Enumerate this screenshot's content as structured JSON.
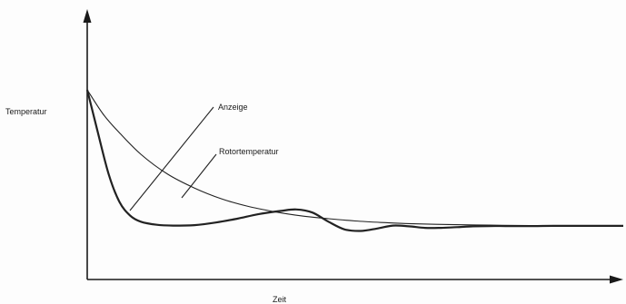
{
  "chart_data": {
    "type": "line",
    "title": "",
    "ylabel": "Temperatur",
    "xlabel": "Zeit",
    "xlim": [
      0,
      100
    ],
    "ylim": [
      0,
      100
    ],
    "grid": false,
    "series": [
      {
        "name": "Rotortemperatur",
        "x": [
          0,
          3,
          6,
          10,
          15,
          20,
          25,
          30,
          35,
          40,
          45,
          50,
          55,
          60,
          65,
          70,
          75,
          80,
          85,
          90,
          95,
          100
        ],
        "y": [
          100,
          84,
          72,
          58,
          45,
          36,
          29,
          24,
          20.5,
          17.8,
          16,
          14.5,
          13.5,
          12.8,
          12.3,
          12,
          11.8,
          11.6,
          11.5,
          11.4,
          11.3,
          11.3
        ]
      },
      {
        "name": "Anzeige",
        "x": [
          0,
          2,
          4,
          6,
          8,
          10,
          13,
          16,
          20,
          24,
          28,
          32,
          36,
          39,
          42,
          45,
          48,
          51,
          54,
          57,
          60,
          63,
          66,
          69,
          72,
          75,
          78,
          81,
          84,
          87,
          90,
          95,
          100
        ],
        "y": [
          100,
          72,
          45,
          27,
          18,
          14,
          12,
          11.5,
          11.8,
          13.5,
          16,
          19,
          21,
          22,
          20,
          14,
          9,
          8,
          9.5,
          11.5,
          11,
          10,
          10,
          10.5,
          11,
          11.2,
          11.2,
          11.2,
          11.2,
          11.3,
          11.3,
          11.3,
          11.3
        ]
      }
    ],
    "annotations": [
      "Anzeige",
      "Rotortemperatur"
    ]
  }
}
